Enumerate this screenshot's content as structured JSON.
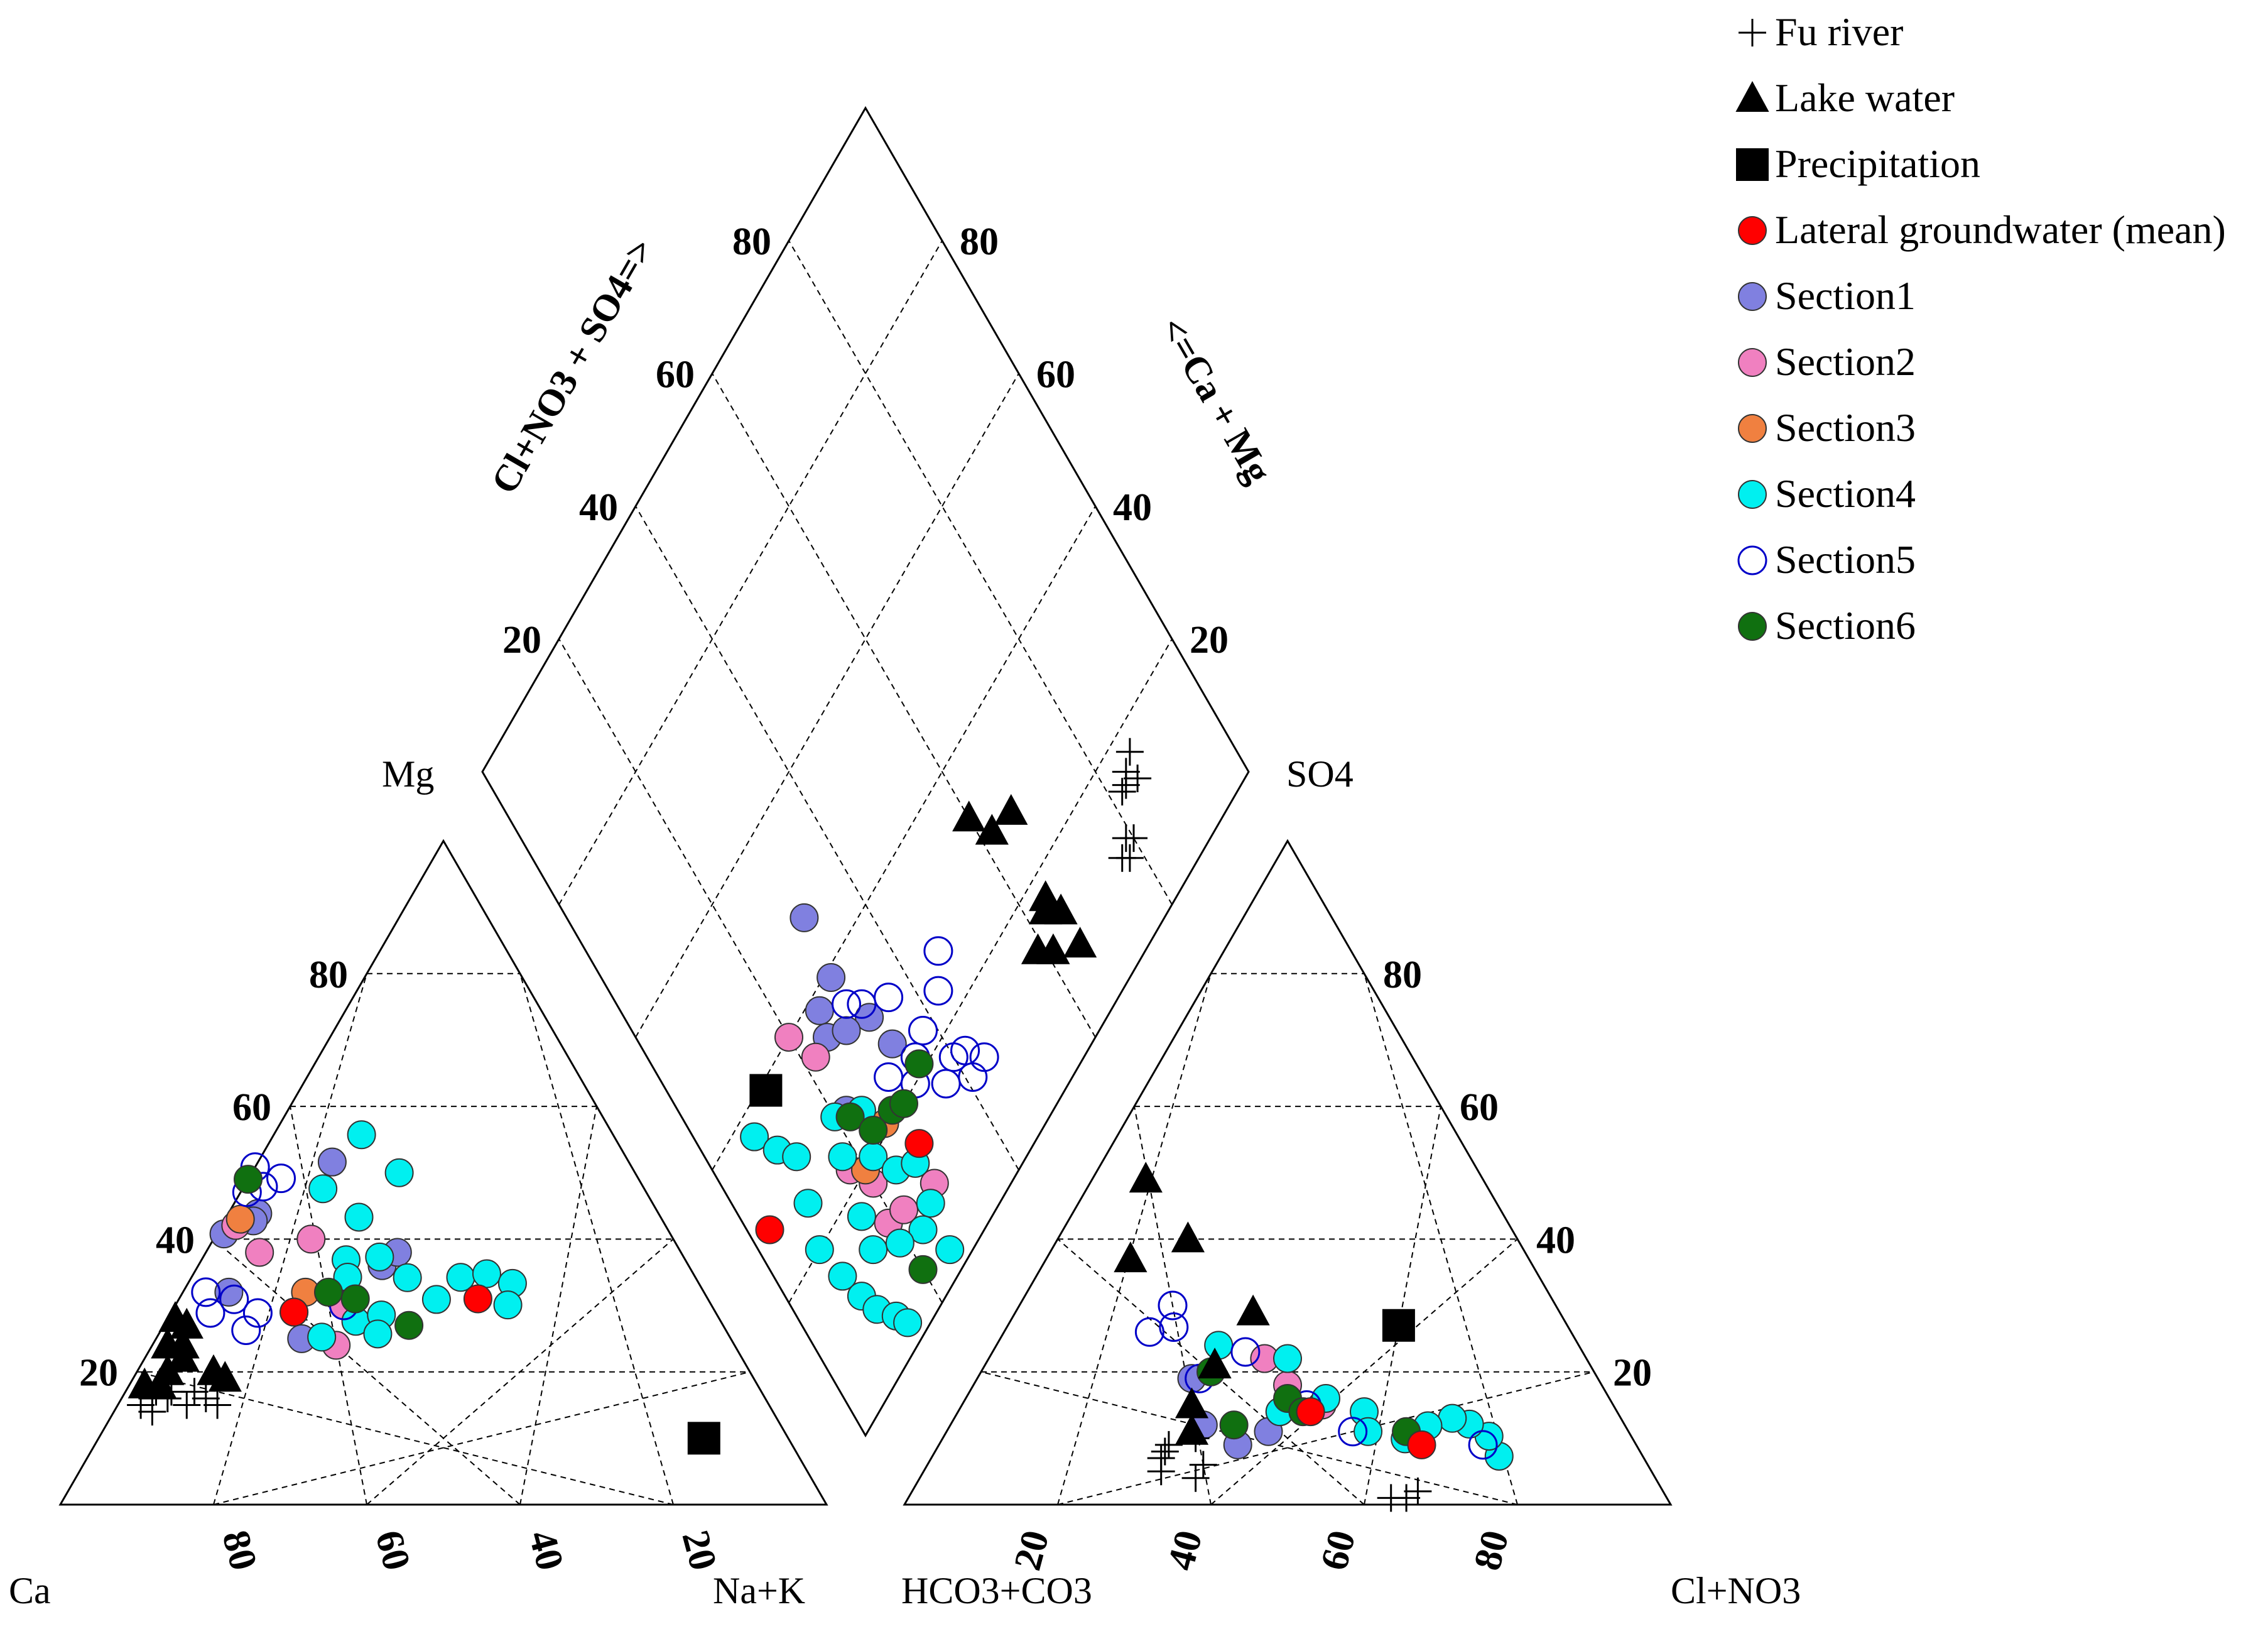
{
  "chart_data": {
    "type": "scatter",
    "subtype": "piper-trilinear-diagram",
    "title": "",
    "grid": true,
    "legend_position": "top-right",
    "colors": {
      "Section1": "#8080e0",
      "Section2": "#f080c0",
      "Section3": "#f08040",
      "Section4": "#00f0f0",
      "Section5": "#0000c8",
      "Section6": "#107010",
      "Lateral groundwater (mean)": "#ff0000",
      "Lake water": "#000000",
      "Precipitation": "#000000",
      "Fu river": "#000000"
    },
    "cation_triangle": {
      "corner_labels": {
        "left": "Ca",
        "top": "Mg",
        "right": "Na+K"
      },
      "left_tick_labels": [
        "20",
        "40",
        "60",
        "80"
      ],
      "bottom_tick_labels": [
        "80",
        "60",
        "40",
        "20"
      ]
    },
    "anion_triangle": {
      "corner_labels": {
        "left": "HCO3+CO3",
        "top": "SO4",
        "right": "Cl+NO3"
      },
      "right_tick_labels": [
        "80",
        "60",
        "40",
        "20"
      ],
      "bottom_tick_labels": [
        "20",
        "40",
        "60",
        "80"
      ]
    },
    "diamond": {
      "upper_left_axis_title": "Cl+NO3 + SO4=>",
      "upper_right_axis_title": "<=Ca + Mg",
      "left_tick_labels": [
        "20",
        "40",
        "60",
        "80"
      ],
      "right_tick_labels": [
        "80",
        "60",
        "40",
        "20"
      ]
    },
    "series": [
      {
        "name": "Fu river",
        "marker": "plus",
        "cation": [
          [
            82,
            15,
            3
          ],
          [
            80,
            16,
            4
          ],
          [
            79,
            17,
            4
          ],
          [
            78,
            16,
            6
          ],
          [
            77,
            17,
            6
          ],
          [
            81,
            14,
            5
          ],
          [
            76,
            15,
            9
          ],
          [
            72,
            15,
            13
          ],
          [
            73,
            16,
            11
          ],
          [
            74,
            17,
            9
          ]
        ],
        "anion": [
          [
            57,
            10,
            33
          ],
          [
            61,
            9,
            30
          ],
          [
            62,
            8,
            30
          ],
          [
            63,
            7,
            30
          ],
          [
            58,
            6,
            36
          ],
          [
            64,
            5,
            31
          ],
          [
            60,
            4,
            36
          ],
          [
            32,
            2,
            66
          ],
          [
            34,
            1,
            65
          ],
          [
            36,
            1,
            63
          ]
        ],
        "diamond": [
          [
            85,
            14
          ],
          [
            83,
            15
          ],
          [
            84,
            16
          ],
          [
            82,
            15
          ],
          [
            86,
            17
          ],
          [
            80,
            10
          ],
          [
            78,
            9
          ],
          [
            77,
            10
          ],
          [
            79,
            11
          ]
        ]
      },
      {
        "name": "Lake water",
        "marker": "filled-triangle",
        "cation": [
          [
            73,
            22,
            5
          ],
          [
            71,
            28,
            1
          ],
          [
            70,
            27,
            3
          ],
          [
            72,
            24,
            4
          ],
          [
            76,
            20,
            4
          ],
          [
            78,
            18,
            4
          ],
          [
            80,
            18,
            2
          ],
          [
            70,
            20,
            10
          ],
          [
            69,
            19,
            12
          ],
          [
            74,
            24,
            2
          ]
        ],
        "anion": [
          [
            44,
            49,
            7
          ],
          [
            43,
            40,
            17
          ],
          [
            52,
            37,
            11
          ],
          [
            40,
            29,
            31
          ],
          [
            49,
            21,
            30
          ],
          [
            55,
            15,
            30
          ],
          [
            57,
            11,
            32
          ]
        ],
        "diamond": [
          [
            60,
            33
          ],
          [
            62,
            29
          ],
          [
            66,
            28
          ],
          [
            64,
            17
          ],
          [
            65,
            14
          ],
          [
            65,
            9
          ],
          [
            61,
            12
          ],
          [
            63,
            16
          ],
          [
            59,
            14
          ]
        ]
      },
      {
        "name": "Precipitation",
        "marker": "filled-square",
        "cation": [
          [
            11,
            10,
            79
          ]
        ],
        "anion": [
          [
            22,
            27,
            51
          ]
        ],
        "diamond": [
          [
            13,
            39
          ]
        ]
      },
      {
        "name": "Lateral groundwater (mean)",
        "marker": "filled-circle",
        "cation": [
          [
            30,
            31,
            39
          ],
          [
            55,
            29,
            16
          ]
        ],
        "anion": [
          [
            28,
            9,
            63
          ],
          [
            40,
            14,
            46
          ]
        ],
        "diamond": [
          [
            3,
            28
          ],
          [
            29,
            15
          ]
        ]
      },
      {
        "name": "Section1",
        "marker": "filled-circle",
        "cation": [
          [
            40,
            36,
            24
          ],
          [
            37,
            38,
            25
          ],
          [
            60,
            42,
            1
          ],
          [
            68,
            57,
            5
          ],
          [
            70,
            56,
            5
          ],
          [
            62,
            32,
            6
          ],
          [
            56,
            25,
            19
          ],
          [
            48,
            64,
            12
          ]
        ],
        "anion": [
          [
            55,
            12,
            33
          ],
          [
            52,
            9,
            39
          ],
          [
            53,
            19,
            28
          ],
          [
            47,
            11,
            42
          ]
        ],
        "diamond": [
          [
            31,
            47
          ],
          [
            26,
            38
          ],
          [
            25,
            35
          ],
          [
            30,
            39
          ],
          [
            32,
            31
          ],
          [
            22,
            27
          ],
          [
            28,
            33
          ],
          [
            33,
            26
          ]
        ]
      },
      {
        "name": "Section2",
        "marker": "filled-circle",
        "cation": [
          [
            60,
            45,
            2
          ],
          [
            52,
            44,
            14
          ],
          [
            55,
            38,
            7
          ],
          [
            48,
            30,
            22
          ],
          [
            52,
            24,
            24
          ]
        ],
        "anion": [
          [
            38,
            15,
            47
          ],
          [
            42,
            22,
            36
          ],
          [
            41,
            18,
            41
          ]
        ],
        "diamond": [
          [
            20,
            40
          ],
          [
            22,
            35
          ],
          [
            18,
            22
          ],
          [
            20,
            18
          ],
          [
            19,
            13
          ],
          [
            22,
            12
          ],
          [
            28,
            10
          ]
        ]
      },
      {
        "name": "Section3",
        "marker": "filled-circle",
        "cation": [
          [
            55,
            43,
            2
          ],
          [
            52,
            32,
            16
          ]
        ],
        "anion": [
          [
            44,
            14,
            42
          ]
        ],
        "diamond": [
          [
            20,
            20
          ],
          [
            26,
            21
          ]
        ]
      },
      {
        "name": "Section4",
        "marker": "filled-circle",
        "cation": [
          [
            43,
            73,
            15
          ],
          [
            40,
            65,
            25
          ],
          [
            52,
            59,
            13
          ],
          [
            50,
            55,
            22
          ],
          [
            50,
            47,
            29
          ],
          [
            54,
            45,
            23
          ],
          [
            44,
            40,
            33
          ],
          [
            34,
            38,
            39
          ],
          [
            31,
            40,
            44
          ],
          [
            27,
            37,
            47
          ],
          [
            30,
            34,
            49
          ],
          [
            49,
            37,
            22
          ],
          [
            39,
            34,
            37
          ],
          [
            50,
            29,
            26
          ],
          [
            46,
            30,
            29
          ],
          [
            48,
            27,
            30
          ],
          [
            57,
            27,
            23
          ]
        ],
        "anion": [
          [
            18,
            7,
            71
          ],
          [
            18,
            10,
            69
          ],
          [
            20,
            12,
            67
          ],
          [
            22,
            13,
            65
          ],
          [
            26,
            12,
            63
          ],
          [
            30,
            10,
            61
          ],
          [
            33,
            14,
            53
          ],
          [
            37,
            16,
            47
          ],
          [
            39,
            22,
            39
          ],
          [
            44,
            14,
            42
          ],
          [
            47,
            24,
            29
          ],
          [
            34,
            11,
            55
          ]
        ],
        "diamond": [
          [
            8,
            37
          ],
          [
            10,
            33
          ],
          [
            12,
            30
          ],
          [
            10,
            25
          ],
          [
            8,
            20
          ],
          [
            9,
            15
          ],
          [
            10,
            11
          ],
          [
            11,
            8
          ],
          [
            13,
            5
          ],
          [
            14,
            3
          ],
          [
            15,
            13
          ],
          [
            16,
            17
          ],
          [
            18,
            24
          ],
          [
            20,
            28
          ],
          [
            24,
            25
          ],
          [
            22,
            20
          ],
          [
            24,
            16
          ],
          [
            27,
            14
          ],
          [
            26,
            9
          ],
          [
            25,
            3
          ],
          [
            23,
            8
          ],
          [
            19,
            10
          ]
        ]
      },
      {
        "name": "Section5",
        "marker": "open-circle",
        "cation": [
          [
            58,
            60,
            0
          ],
          [
            55,
            58,
            5
          ],
          [
            59,
            57,
            3
          ],
          [
            62,
            56,
            1
          ],
          [
            65,
            32,
            3
          ],
          [
            62,
            26,
            11
          ],
          [
            60,
            30,
            7
          ],
          [
            64,
            28,
            5
          ],
          [
            58,
            28,
            11
          ],
          [
            48,
            30,
            22
          ]
        ],
        "anion": [
          [
            20,
            9,
            71
          ],
          [
            36,
            11,
            53
          ],
          [
            40,
            15,
            45
          ],
          [
            50,
            30,
            20
          ],
          [
            52,
            27,
            22
          ],
          [
            55,
            26,
            19
          ],
          [
            44,
            23,
            33
          ],
          [
            52,
            19,
            29
          ]
        ],
        "diamond": [
          [
            38,
            23
          ],
          [
            35,
            22
          ],
          [
            33,
            20
          ],
          [
            40,
            17
          ],
          [
            42,
            16
          ],
          [
            44,
            13
          ],
          [
            41,
            13
          ],
          [
            32,
            33
          ],
          [
            30,
            35
          ],
          [
            36,
            30
          ],
          [
            43,
            24
          ],
          [
            46,
            27
          ],
          [
            30,
            24
          ],
          [
            37,
            16
          ]
        ]
      },
      {
        "name": "Section6",
        "marker": "filled-circle",
        "cation": [
          [
            52,
            50,
            0
          ],
          [
            46,
            31,
            23
          ],
          [
            49,
            32,
            19
          ],
          [
            55,
            29,
            16
          ],
          [
            41,
            27,
            32
          ]
        ],
        "anion": [
          [
            29,
            11,
            60
          ],
          [
            42,
            16,
            42
          ],
          [
            50,
            20,
            30
          ],
          [
            51,
            12,
            37
          ],
          [
            41,
            14,
            45
          ]
        ],
        "diamond": [
          [
            22,
            26
          ],
          [
            24,
            22
          ],
          [
            28,
            21
          ],
          [
            30,
            20
          ],
          [
            20,
            5
          ],
          [
            35,
            21
          ]
        ]
      }
    ]
  }
}
